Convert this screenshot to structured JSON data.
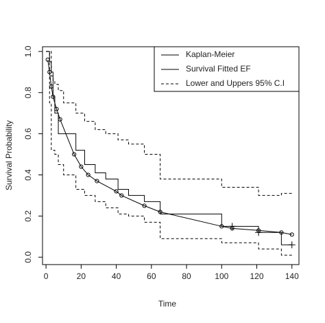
{
  "chart_data": {
    "type": "survival",
    "xlabel": "Time",
    "ylabel": "Survival Probability",
    "xlim": [
      -2,
      144
    ],
    "ylim": [
      -0.036,
      1.023
    ],
    "xticks": [
      0,
      20,
      40,
      60,
      80,
      100,
      120,
      140
    ],
    "yticks": [
      {
        "value": 0,
        "label": "0.0"
      },
      0.2,
      0.4,
      0.6,
      0.8,
      {
        "value": 1,
        "label": "1.0"
      }
    ],
    "legend": "top-right",
    "series": [
      {
        "name": "Kaplan-Meier",
        "style": "step",
        "dash": false,
        "color": "#000000",
        "x": [
          0,
          2,
          3,
          4,
          5,
          7,
          10,
          17,
          22,
          28,
          34,
          41,
          47,
          56,
          65,
          100,
          121,
          134,
          140
        ],
        "values": [
          1.0,
          0.95,
          0.9,
          0.78,
          0.7,
          0.6,
          0.6,
          0.52,
          0.45,
          0.41,
          0.38,
          0.33,
          0.3,
          0.27,
          0.21,
          0.15,
          0.12,
          0.06,
          0.06
        ],
        "censor_x": [
          106,
          121,
          140
        ],
        "censor_values": [
          0.15,
          0.12,
          0.06
        ]
      },
      {
        "name": "Survival Fitted EF",
        "style": "curve",
        "dash": false,
        "color": "#000000",
        "x": [
          1,
          2,
          3,
          4,
          6,
          8,
          16,
          20,
          24,
          29,
          40,
          43,
          56,
          65,
          100,
          106,
          121,
          134,
          140
        ],
        "values": [
          0.96,
          0.9,
          0.83,
          0.78,
          0.72,
          0.67,
          0.5,
          0.44,
          0.4,
          0.37,
          0.32,
          0.3,
          0.25,
          0.22,
          0.15,
          0.14,
          0.13,
          0.12,
          0.11
        ]
      },
      {
        "name": "Lower and Uppers 95% C.I",
        "style": "band-step",
        "dash": true,
        "color": "#000000",
        "x": [
          0,
          2,
          3,
          4,
          5,
          7,
          10,
          17,
          22,
          28,
          34,
          41,
          47,
          56,
          65,
          100,
          121,
          134,
          140
        ],
        "upper": [
          1.0,
          1.0,
          0.88,
          0.86,
          0.84,
          0.81,
          0.75,
          0.7,
          0.66,
          0.62,
          0.6,
          0.57,
          0.55,
          0.5,
          0.38,
          0.34,
          0.3,
          0.31,
          0.31
        ],
        "lower": [
          1.0,
          0.75,
          0.52,
          0.52,
          0.5,
          0.45,
          0.4,
          0.33,
          0.3,
          0.27,
          0.24,
          0.21,
          0.2,
          0.17,
          0.09,
          0.07,
          0.04,
          0.01,
          0.01
        ]
      }
    ]
  }
}
